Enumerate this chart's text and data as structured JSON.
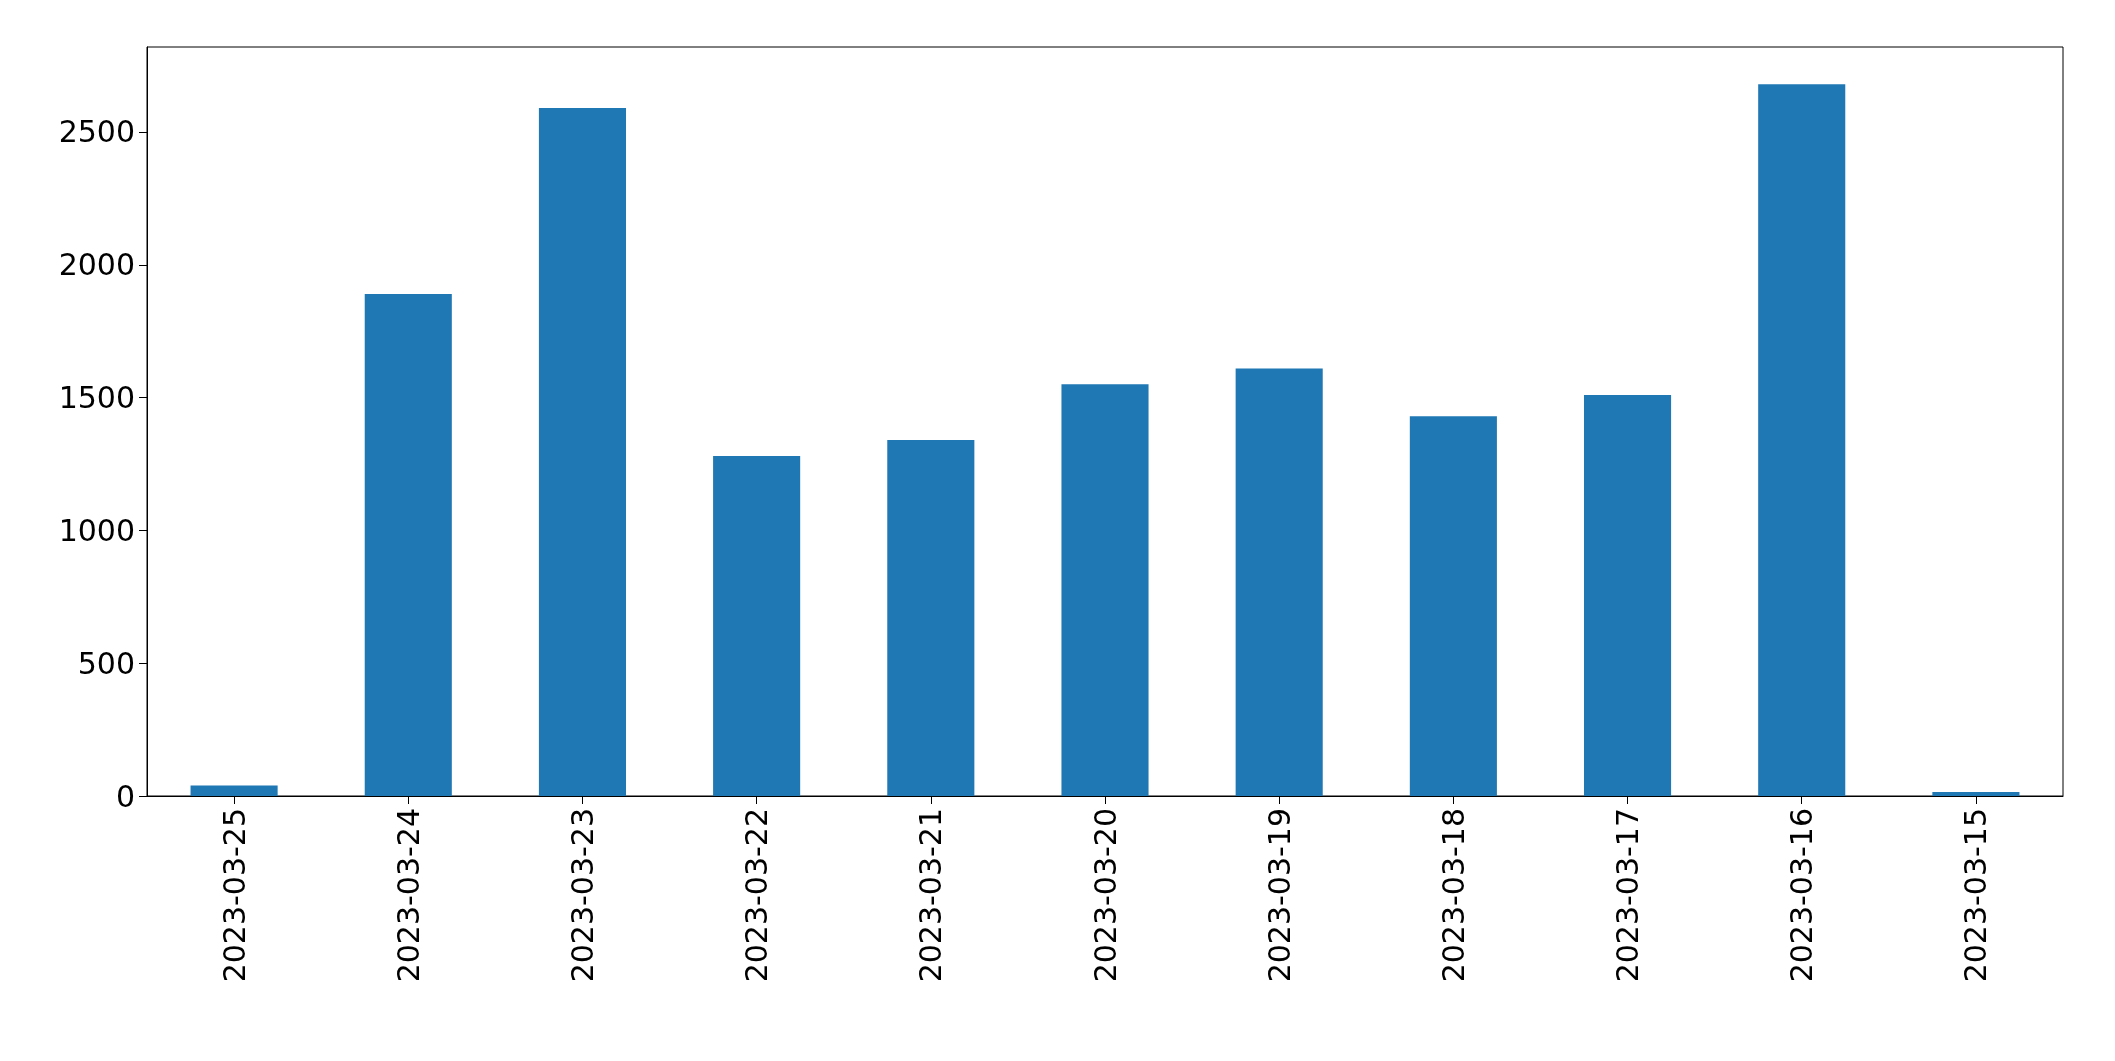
{
  "chart_data": {
    "type": "bar",
    "categories": [
      "2023-03-25",
      "2023-03-24",
      "2023-03-23",
      "2023-03-22",
      "2023-03-21",
      "2023-03-20",
      "2023-03-19",
      "2023-03-18",
      "2023-03-17",
      "2023-03-16",
      "2023-03-15"
    ],
    "values": [
      40,
      1890,
      2590,
      1280,
      1340,
      1550,
      1610,
      1430,
      1510,
      2680,
      15
    ],
    "color": "#1f77b4",
    "ylim": [
      0,
      2820
    ],
    "yticks": [
      0,
      500,
      1000,
      1500,
      2000,
      2500
    ],
    "grid": false
  }
}
